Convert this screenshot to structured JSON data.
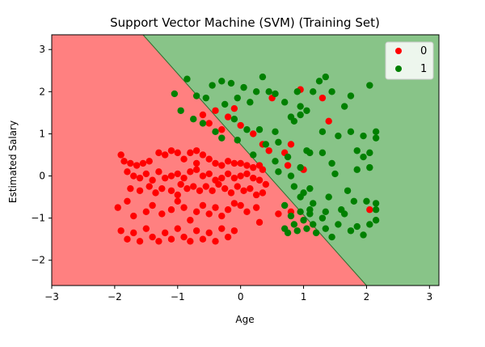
{
  "chart_data": {
    "type": "scatter",
    "title": "Support Vector Machine (SVM) (Training Set)",
    "xlabel": "Age",
    "ylabel": "Estimated Salary",
    "xlim": [
      -3.0,
      3.15
    ],
    "ylim": [
      -2.6,
      3.35
    ],
    "xticks": [
      -3,
      -2,
      -1,
      0,
      1,
      2,
      3
    ],
    "yticks": [
      -2,
      -1,
      0,
      1,
      2,
      3
    ],
    "grid": false,
    "legend_position": "top-right",
    "decision_regions": [
      {
        "class": "0",
        "color": "#ff8080"
      },
      {
        "class": "1",
        "color": "#88c488"
      }
    ],
    "decision_boundary": [
      [
        -1.55,
        3.35
      ],
      [
        2.0,
        -2.6
      ]
    ],
    "series": [
      {
        "name": "0",
        "color": "#ff0000",
        "points": [
          [
            -1.9,
            0.5
          ],
          [
            -1.85,
            0.35
          ],
          [
            -1.75,
            0.3
          ],
          [
            -1.65,
            0.25
          ],
          [
            -1.55,
            0.3
          ],
          [
            -1.45,
            0.35
          ],
          [
            -1.3,
            0.55
          ],
          [
            -1.2,
            0.5
          ],
          [
            -1.1,
            0.6
          ],
          [
            -1.0,
            0.55
          ],
          [
            -0.9,
            0.4
          ],
          [
            -0.8,
            0.55
          ],
          [
            -0.7,
            0.6
          ],
          [
            -0.6,
            0.5
          ],
          [
            -0.7,
            0.3
          ],
          [
            -0.5,
            0.4
          ],
          [
            -0.4,
            0.3
          ],
          [
            -0.3,
            0.25
          ],
          [
            -0.2,
            0.35
          ],
          [
            -0.1,
            0.3
          ],
          [
            0.0,
            0.3
          ],
          [
            0.1,
            0.25
          ],
          [
            0.2,
            0.2
          ],
          [
            0.3,
            0.25
          ],
          [
            0.35,
            0.15
          ],
          [
            -1.8,
            0.1
          ],
          [
            -1.7,
            0.0
          ],
          [
            -1.6,
            -0.05
          ],
          [
            -1.5,
            0.05
          ],
          [
            -1.4,
            -0.1
          ],
          [
            -1.3,
            0.1
          ],
          [
            -1.2,
            -0.05
          ],
          [
            -1.1,
            0.0
          ],
          [
            -1.0,
            0.05
          ],
          [
            -0.9,
            -0.05
          ],
          [
            -0.8,
            0.1
          ],
          [
            -0.7,
            0.15
          ],
          [
            -0.6,
            0.0
          ],
          [
            -0.5,
            0.05
          ],
          [
            -0.4,
            -0.1
          ],
          [
            -0.3,
            -0.05
          ],
          [
            -0.2,
            0.05
          ],
          [
            -0.1,
            -0.05
          ],
          [
            0.0,
            0.0
          ],
          [
            0.1,
            0.05
          ],
          [
            0.2,
            -0.05
          ],
          [
            0.3,
            -0.1
          ],
          [
            -1.75,
            -0.3
          ],
          [
            -1.6,
            -0.35
          ],
          [
            -1.45,
            -0.25
          ],
          [
            -1.35,
            -0.4
          ],
          [
            -1.25,
            -0.3
          ],
          [
            -1.1,
            -0.35
          ],
          [
            -1.0,
            -0.45
          ],
          [
            -0.95,
            -0.2
          ],
          [
            -0.85,
            -0.3
          ],
          [
            -0.75,
            -0.25
          ],
          [
            -0.65,
            -0.35
          ],
          [
            -0.55,
            -0.25
          ],
          [
            -0.45,
            -0.35
          ],
          [
            -0.35,
            -0.2
          ],
          [
            -0.25,
            -0.3
          ],
          [
            -0.15,
            -0.4
          ],
          [
            -0.05,
            -0.25
          ],
          [
            0.05,
            -0.35
          ],
          [
            0.15,
            -0.3
          ],
          [
            0.25,
            -0.45
          ],
          [
            0.35,
            -0.4
          ],
          [
            0.4,
            -0.2
          ],
          [
            -1.95,
            -0.75
          ],
          [
            -1.8,
            -0.6
          ],
          [
            -1.7,
            -0.95
          ],
          [
            -1.5,
            -0.85
          ],
          [
            -1.4,
            -0.7
          ],
          [
            -1.25,
            -0.9
          ],
          [
            -1.1,
            -0.8
          ],
          [
            -1.0,
            -0.6
          ],
          [
            -0.9,
            -0.75
          ],
          [
            -0.8,
            -1.05
          ],
          [
            -0.7,
            -0.85
          ],
          [
            -0.6,
            -0.7
          ],
          [
            -0.5,
            -0.9
          ],
          [
            -0.4,
            -0.75
          ],
          [
            -0.3,
            -0.95
          ],
          [
            -0.2,
            -0.8
          ],
          [
            -0.1,
            -0.65
          ],
          [
            0.0,
            -0.7
          ],
          [
            0.1,
            -0.85
          ],
          [
            0.25,
            -0.75
          ],
          [
            0.3,
            -1.1
          ],
          [
            0.6,
            -0.9
          ],
          [
            0.8,
            -0.85
          ],
          [
            -1.9,
            -1.3
          ],
          [
            -1.8,
            -1.5
          ],
          [
            -1.7,
            -1.35
          ],
          [
            -1.6,
            -1.55
          ],
          [
            -1.5,
            -1.25
          ],
          [
            -1.4,
            -1.45
          ],
          [
            -1.3,
            -1.55
          ],
          [
            -1.2,
            -1.35
          ],
          [
            -1.1,
            -1.5
          ],
          [
            -1.0,
            -1.25
          ],
          [
            -0.9,
            -1.45
          ],
          [
            -0.8,
            -1.55
          ],
          [
            -0.7,
            -1.3
          ],
          [
            -0.6,
            -1.5
          ],
          [
            -0.5,
            -1.35
          ],
          [
            -0.4,
            -1.55
          ],
          [
            -0.3,
            -1.25
          ],
          [
            -0.2,
            -1.45
          ],
          [
            -0.1,
            -1.3
          ],
          [
            -0.6,
            1.45
          ],
          [
            -0.4,
            1.55
          ],
          [
            -0.2,
            1.4
          ],
          [
            -0.1,
            1.6
          ],
          [
            0.0,
            1.2
          ],
          [
            -0.3,
            1.1
          ],
          [
            -0.5,
            1.25
          ],
          [
            0.2,
            1.0
          ],
          [
            0.35,
            0.75
          ],
          [
            0.45,
            0.6
          ],
          [
            0.5,
            1.85
          ],
          [
            0.95,
            2.05
          ],
          [
            1.3,
            1.85
          ],
          [
            1.4,
            1.3
          ],
          [
            0.8,
            0.75
          ],
          [
            0.7,
            0.55
          ],
          [
            0.75,
            0.25
          ],
          [
            1.0,
            0.15
          ],
          [
            2.05,
            -0.8
          ]
        ]
      },
      {
        "name": "1",
        "color": "#008000",
        "points": [
          [
            -1.05,
            1.95
          ],
          [
            -0.85,
            2.3
          ],
          [
            -0.7,
            1.9
          ],
          [
            -0.55,
            1.85
          ],
          [
            -0.45,
            2.15
          ],
          [
            -0.3,
            2.25
          ],
          [
            -0.25,
            1.7
          ],
          [
            -0.15,
            2.2
          ],
          [
            -0.05,
            1.85
          ],
          [
            0.05,
            2.1
          ],
          [
            0.15,
            1.75
          ],
          [
            0.25,
            2.0
          ],
          [
            0.35,
            2.35
          ],
          [
            0.45,
            2.0
          ],
          [
            0.55,
            1.95
          ],
          [
            0.7,
            1.75
          ],
          [
            0.9,
            2.0
          ],
          [
            0.95,
            1.65
          ],
          [
            1.05,
            1.55
          ],
          [
            1.15,
            2.0
          ],
          [
            1.25,
            2.25
          ],
          [
            1.35,
            2.35
          ],
          [
            1.45,
            2.0
          ],
          [
            1.65,
            1.65
          ],
          [
            1.75,
            1.9
          ],
          [
            2.05,
            2.15
          ],
          [
            -0.95,
            1.55
          ],
          [
            -0.75,
            1.35
          ],
          [
            -0.6,
            1.25
          ],
          [
            -0.4,
            1.05
          ],
          [
            -0.3,
            0.9
          ],
          [
            -0.1,
            1.35
          ],
          [
            -0.05,
            0.85
          ],
          [
            0.1,
            1.1
          ],
          [
            0.3,
            1.1
          ],
          [
            0.55,
            1.05
          ],
          [
            0.6,
            0.8
          ],
          [
            0.8,
            1.4
          ],
          [
            0.85,
            1.3
          ],
          [
            0.95,
            1.45
          ],
          [
            1.05,
            0.6
          ],
          [
            1.1,
            0.55
          ],
          [
            1.3,
            1.05
          ],
          [
            1.55,
            0.95
          ],
          [
            1.75,
            1.05
          ],
          [
            1.95,
            0.95
          ],
          [
            2.15,
            1.05
          ],
          [
            1.85,
            0.6
          ],
          [
            2.05,
            0.55
          ],
          [
            2.15,
            0.9
          ],
          [
            0.2,
            0.5
          ],
          [
            0.4,
            0.75
          ],
          [
            0.55,
            0.35
          ],
          [
            0.75,
            0.45
          ],
          [
            0.95,
            0.2
          ],
          [
            1.3,
            0.55
          ],
          [
            1.45,
            0.3
          ],
          [
            1.5,
            0.05
          ],
          [
            1.85,
            0.15
          ],
          [
            1.95,
            0.45
          ],
          [
            2.05,
            0.2
          ],
          [
            0.6,
            0.1
          ],
          [
            0.8,
            0.0
          ],
          [
            0.85,
            -0.25
          ],
          [
            0.95,
            -0.5
          ],
          [
            1.0,
            -0.4
          ],
          [
            1.1,
            -0.3
          ],
          [
            1.15,
            -0.65
          ],
          [
            1.4,
            -0.5
          ],
          [
            1.7,
            -0.35
          ],
          [
            1.8,
            -0.6
          ],
          [
            2.0,
            -0.6
          ],
          [
            2.15,
            -0.65
          ],
          [
            2.15,
            -0.8
          ],
          [
            0.7,
            -0.7
          ],
          [
            0.8,
            -0.95
          ],
          [
            0.85,
            -1.15
          ],
          [
            0.95,
            -0.85
          ],
          [
            1.0,
            -1.05
          ],
          [
            1.05,
            -1.25
          ],
          [
            1.1,
            -0.9
          ],
          [
            1.15,
            -1.15
          ],
          [
            1.2,
            -1.35
          ],
          [
            1.3,
            -1.0
          ],
          [
            1.35,
            -1.25
          ],
          [
            1.45,
            -1.45
          ],
          [
            1.55,
            -1.15
          ],
          [
            1.65,
            -0.9
          ],
          [
            1.75,
            -1.3
          ],
          [
            1.85,
            -1.2
          ],
          [
            1.95,
            -1.4
          ],
          [
            2.05,
            -1.15
          ],
          [
            2.15,
            -1.05
          ],
          [
            1.1,
            -0.8
          ],
          [
            0.9,
            -1.3
          ],
          [
            0.75,
            -1.35
          ],
          [
            0.7,
            -1.25
          ],
          [
            1.35,
            -0.85
          ],
          [
            1.6,
            -0.8
          ]
        ]
      }
    ]
  }
}
